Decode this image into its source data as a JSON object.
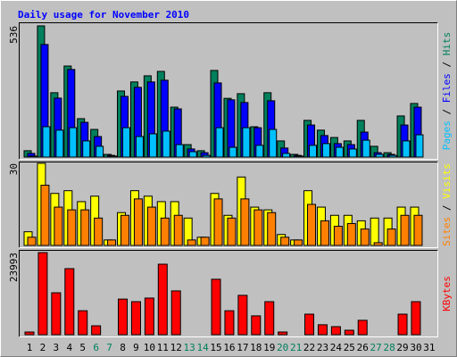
{
  "title": "Daily usage for November 2010",
  "legend_separator": " / ",
  "chart_data": [
    {
      "type": "bar",
      "ylim": [
        0,
        536
      ],
      "yticks": [
        536
      ],
      "series": [
        {
          "name": "Pages",
          "color": "#00c0ff",
          "values": [
            4,
            124,
            110,
            120,
            66,
            44,
            4,
            120,
            84,
            95,
            106,
            51,
            22,
            7,
            120,
            40,
            120,
            48,
            113,
            15,
            4,
            48,
            55,
            40,
            33,
            69,
            11,
            7,
            66,
            91,
            0
          ]
        },
        {
          "name": "Files",
          "color": "#0000ff",
          "values": [
            15,
            460,
            241,
            358,
            142,
            84,
            7,
            248,
            285,
            307,
            314,
            197,
            33,
            18,
            303,
            234,
            223,
            120,
            230,
            37,
            7,
            131,
            88,
            55,
            51,
            102,
            18,
            11,
            131,
            204,
            0
          ]
        },
        {
          "name": "Hits",
          "color": "#00805c",
          "values": [
            26,
            536,
            263,
            372,
            157,
            113,
            11,
            270,
            307,
            332,
            350,
            204,
            51,
            26,
            354,
            240,
            259,
            124,
            263,
            66,
            11,
            150,
            110,
            80,
            66,
            150,
            44,
            18,
            168,
            219,
            0
          ]
        }
      ]
    },
    {
      "type": "bar",
      "ylim": [
        0,
        30
      ],
      "yticks": [
        30
      ],
      "series": [
        {
          "name": "Sites",
          "color": "#ff8000",
          "values": [
            3,
            22,
            14,
            13,
            13,
            10,
            2,
            11,
            17,
            14,
            10,
            11,
            2,
            3,
            17,
            10,
            17,
            13,
            12,
            3,
            2,
            15,
            9,
            7,
            8,
            6,
            1,
            6,
            11,
            11,
            0
          ]
        },
        {
          "name": "Visits",
          "color": "#ffff00",
          "values": [
            5,
            30,
            19,
            20,
            16,
            18,
            2,
            12,
            20,
            18,
            16,
            16,
            10,
            3,
            19,
            11,
            25,
            14,
            13,
            4,
            2,
            20,
            14,
            11,
            11,
            9,
            10,
            10,
            14,
            14,
            0
          ]
        }
      ]
    },
    {
      "type": "bar",
      "ylim": [
        0,
        23993
      ],
      "yticks": [
        23993
      ],
      "categories": [
        "1",
        "2",
        "3",
        "4",
        "5",
        "6",
        "7",
        "8",
        "9",
        "10",
        "11",
        "12",
        "13",
        "14",
        "15",
        "16",
        "17",
        "18",
        "19",
        "20",
        "21",
        "22",
        "23",
        "24",
        "25",
        "26",
        "27",
        "28",
        "29",
        "30",
        "31"
      ],
      "category_colors": [
        "#000000",
        "#000000",
        "#000000",
        "#000000",
        "#000000",
        "#00805c",
        "#00805c",
        "#000000",
        "#000000",
        "#000000",
        "#000000",
        "#000000",
        "#00805c",
        "#00805c",
        "#000000",
        "#000000",
        "#000000",
        "#000000",
        "#000000",
        "#00805c",
        "#00805c",
        "#000000",
        "#000000",
        "#000000",
        "#000000",
        "#000000",
        "#00805c",
        "#00805c",
        "#000000",
        "#000000",
        "#000000"
      ],
      "series": [
        {
          "name": "KBytes",
          "color": "#ff0000",
          "values": [
            780,
            23993,
            12250,
            19300,
            7000,
            2600,
            0,
            10400,
            9650,
            10700,
            20600,
            12800,
            0,
            0,
            16200,
            7000,
            11500,
            5500,
            9650,
            780,
            0,
            6000,
            2900,
            2350,
            1300,
            4200,
            0,
            0,
            6000,
            9650,
            0
          ]
        }
      ]
    }
  ]
}
